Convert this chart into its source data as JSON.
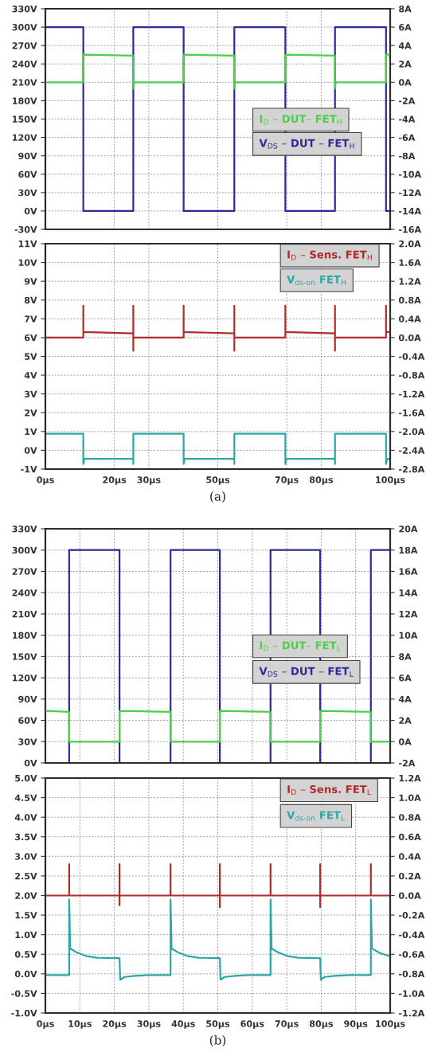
{
  "chart_data": [
    {
      "type": "line",
      "xlim": [
        0,
        100
      ],
      "xticks": [
        {
          "value": 20,
          "label": null
        },
        {
          "value": 30,
          "label": null
        },
        {
          "value": 50,
          "label": null
        },
        {
          "value": 70,
          "label": null
        },
        {
          "value": 80,
          "label": null
        }
      ],
      "ylim": [
        -30,
        330
      ],
      "yticks": [
        {
          "value": -30,
          "label": "-30V"
        },
        {
          "value": 0,
          "label": "0V"
        },
        {
          "value": 30,
          "label": "30V"
        },
        {
          "value": 60,
          "label": "60V"
        },
        {
          "value": 90,
          "label": "90V"
        },
        {
          "value": 120,
          "label": "120V"
        },
        {
          "value": 150,
          "label": "150V"
        },
        {
          "value": 180,
          "label": "180V"
        },
        {
          "value": 210,
          "label": "210V"
        },
        {
          "value": 240,
          "label": "240V"
        },
        {
          "value": 270,
          "label": "270V"
        },
        {
          "value": 300,
          "label": "300V"
        },
        {
          "value": 330,
          "label": "330V"
        }
      ],
      "y2lim": [
        -16,
        8
      ],
      "y2ticks": [
        {
          "value": -16,
          "label": "-16A"
        },
        {
          "value": -14,
          "label": "-14A"
        },
        {
          "value": -12,
          "label": "-12A"
        },
        {
          "value": -10,
          "label": "-10A"
        },
        {
          "value": -8,
          "label": "-8A"
        },
        {
          "value": -6,
          "label": "-6A"
        },
        {
          "value": -4,
          "label": "-4A"
        },
        {
          "value": -2,
          "label": "-2A"
        },
        {
          "value": 0,
          "label": "0A"
        },
        {
          "value": 2,
          "label": "2A"
        },
        {
          "value": 4,
          "label": "4A"
        },
        {
          "value": 6,
          "label": "6A"
        },
        {
          "value": 8,
          "label": "8A"
        }
      ],
      "grid": true,
      "legend": "right",
      "tick_labels": "y",
      "series": [
        {
          "name": "I$_{D}$ – DUT– FET$_{H}$",
          "color": "#4ccf4c",
          "axis": "y2",
          "x": [
            0,
            11,
            11,
            25.5,
            25.5,
            25.7,
            40.1,
            40.1,
            54.8,
            54.8,
            55.0,
            69.6,
            69.6,
            84.0,
            84.0,
            84.2,
            98.8,
            98.8,
            100
          ],
          "values": [
            0,
            0,
            3.0,
            2.9,
            -0.7,
            0,
            0,
            3.0,
            2.9,
            -0.7,
            0,
            0,
            3.0,
            2.9,
            -0.7,
            0,
            0,
            3.0,
            3.0
          ]
        },
        {
          "name": "V$_{DS}$ – DUT – FET$_{H}$",
          "color": "#2b2b9a",
          "axis": "y",
          "x": [
            0,
            11,
            11,
            25.5,
            25.5,
            40.1,
            40.1,
            54.8,
            54.8,
            69.6,
            69.6,
            84,
            84,
            98.8,
            98.8,
            100
          ],
          "values": [
            300,
            300,
            0,
            0,
            300,
            300,
            0,
            0,
            300,
            300,
            0,
            0,
            300,
            300,
            0,
            0
          ]
        }
      ]
    },
    {
      "type": "line",
      "xlim": [
        0,
        100
      ],
      "xticks": [
        {
          "value": 0,
          "label": "0µs"
        },
        {
          "value": 20,
          "label": "20µs"
        },
        {
          "value": 30,
          "label": "30µs"
        },
        {
          "value": 50,
          "label": "50µs"
        },
        {
          "value": 70,
          "label": "70µs"
        },
        {
          "value": 80,
          "label": "80µs"
        },
        {
          "value": 100,
          "label": "100µs"
        }
      ],
      "ylim": [
        -1,
        11
      ],
      "yticks": [
        {
          "value": -1,
          "label": "-1V"
        },
        {
          "value": 0,
          "label": "0V"
        },
        {
          "value": 1,
          "label": "1V"
        },
        {
          "value": 2,
          "label": "2V"
        },
        {
          "value": 3,
          "label": "3V"
        },
        {
          "value": 4,
          "label": "4V"
        },
        {
          "value": 5,
          "label": "5V"
        },
        {
          "value": 6,
          "label": "6V"
        },
        {
          "value": 7,
          "label": "7V"
        },
        {
          "value": 8,
          "label": "8V"
        },
        {
          "value": 9,
          "label": "9V"
        },
        {
          "value": 10,
          "label": "10V"
        },
        {
          "value": 11,
          "label": "11V"
        }
      ],
      "y2lim": [
        -2.8,
        2.0
      ],
      "y2ticks": [
        {
          "value": -2.8,
          "label": "-2.8A"
        },
        {
          "value": -2.4,
          "label": "-2.4A"
        },
        {
          "value": -2.0,
          "label": "-2.0A"
        },
        {
          "value": -1.6,
          "label": "-1.6A"
        },
        {
          "value": -1.2,
          "label": "-1.2A"
        },
        {
          "value": -0.8,
          "label": "-0.8A"
        },
        {
          "value": -0.4,
          "label": "-0.4A"
        },
        {
          "value": 0.0,
          "label": "0.0A"
        },
        {
          "value": 0.4,
          "label": "0.4A"
        },
        {
          "value": 0.8,
          "label": "0.8A"
        },
        {
          "value": 1.2,
          "label": "1.2A"
        },
        {
          "value": 1.6,
          "label": "1.6A"
        },
        {
          "value": 2.0,
          "label": "2.0A"
        }
      ],
      "grid": true,
      "legend": "top right",
      "annotations": [
        "(a)"
      ],
      "series": [
        {
          "name": "I$_{D}$ – Sens. FET$_{H}$",
          "color": "#b22a2a",
          "axis": "y2",
          "x": [
            0,
            11,
            11,
            11,
            25.5,
            25.5,
            25.5,
            25.5,
            40.1,
            40.1,
            40.1,
            54.8,
            54.8,
            54.8,
            54.8,
            69.6,
            69.6,
            69.6,
            84,
            84,
            84,
            84,
            98.8,
            98.8,
            98.8,
            100
          ],
          "values": [
            0,
            0,
            0.68,
            0.12,
            0.09,
            0.68,
            -0.28,
            0,
            0,
            0.68,
            0.12,
            0.09,
            0.68,
            -0.28,
            0,
            0,
            0.68,
            0.12,
            0.09,
            0.68,
            -0.28,
            0,
            0,
            0.68,
            0.12,
            0.12
          ]
        },
        {
          "name": "V$_{ds-on}$ FET$_{H}$",
          "color": "#2aa8a8",
          "axis": "y",
          "x": [
            0,
            11,
            11,
            11.3,
            25.5,
            25.5,
            25.5,
            40.1,
            40.1,
            40.4,
            54.8,
            54.8,
            54.8,
            69.6,
            69.6,
            69.9,
            84,
            84,
            84,
            98.8,
            98.8,
            99.1,
            100
          ],
          "values": [
            0.88,
            0.88,
            -0.73,
            -0.45,
            -0.45,
            -0.73,
            0.88,
            0.88,
            -0.73,
            -0.45,
            -0.45,
            -0.73,
            0.88,
            0.88,
            -0.73,
            -0.45,
            -0.45,
            -0.73,
            0.88,
            0.88,
            -0.73,
            -0.45,
            -0.45
          ]
        }
      ]
    },
    {
      "type": "line",
      "xlim": [
        0,
        100
      ],
      "xticks": [
        {
          "value": 0,
          "label": null
        },
        {
          "value": 10,
          "label": null
        },
        {
          "value": 20,
          "label": null
        },
        {
          "value": 30,
          "label": null
        },
        {
          "value": 40,
          "label": null
        },
        {
          "value": 50,
          "label": null
        },
        {
          "value": 60,
          "label": null
        },
        {
          "value": 70,
          "label": null
        },
        {
          "value": 80,
          "label": null
        },
        {
          "value": 90,
          "label": null
        },
        {
          "value": 100,
          "label": null
        }
      ],
      "ylim": [
        0,
        330
      ],
      "yticks": [
        {
          "value": 0,
          "label": "0V"
        },
        {
          "value": 30,
          "label": "30V"
        },
        {
          "value": 60,
          "label": "60V"
        },
        {
          "value": 90,
          "label": "90V"
        },
        {
          "value": 120,
          "label": "120V"
        },
        {
          "value": 150,
          "label": "150V"
        },
        {
          "value": 180,
          "label": "180V"
        },
        {
          "value": 210,
          "label": "210V"
        },
        {
          "value": 240,
          "label": "240V"
        },
        {
          "value": 270,
          "label": "270V"
        },
        {
          "value": 300,
          "label": "300V"
        },
        {
          "value": 330,
          "label": "330V"
        }
      ],
      "y2lim": [
        -2,
        20
      ],
      "y2ticks": [
        {
          "value": -2,
          "label": "-2A"
        },
        {
          "value": 0,
          "label": "0A"
        },
        {
          "value": 2,
          "label": "2A"
        },
        {
          "value": 4,
          "label": "4A"
        },
        {
          "value": 6,
          "label": "6A"
        },
        {
          "value": 8,
          "label": "8A"
        },
        {
          "value": 10,
          "label": "10A"
        },
        {
          "value": 12,
          "label": "12A"
        },
        {
          "value": 14,
          "label": "14A"
        },
        {
          "value": 16,
          "label": "16A"
        },
        {
          "value": 18,
          "label": "18A"
        },
        {
          "value": 20,
          "label": "20A"
        }
      ],
      "grid": true,
      "legend": "right",
      "tick_labels": "y",
      "series": [
        {
          "name": "I$_{D}$ – DUT– FET$_{L}$",
          "color": "#4ccf4c",
          "axis": "y2",
          "x": [
            0,
            6.9,
            6.9,
            21.5,
            21.5,
            36.3,
            36.3,
            50.6,
            50.6,
            65.3,
            65.3,
            79.7,
            79.7,
            94.4,
            94.4,
            100
          ],
          "values": [
            2.9,
            2.8,
            0,
            0,
            2.9,
            2.8,
            0,
            0,
            2.9,
            2.8,
            0,
            0,
            2.9,
            2.8,
            0,
            0
          ]
        },
        {
          "name": "V$_{DS}$ – DUT – FET$_{L}$",
          "color": "#2b2b9a",
          "axis": "y",
          "x": [
            0,
            6.9,
            6.9,
            21.5,
            21.5,
            36.3,
            36.3,
            50.6,
            50.6,
            65.3,
            65.3,
            79.7,
            79.7,
            94.4,
            94.4,
            100
          ],
          "values": [
            0,
            0,
            300,
            300,
            0,
            0,
            300,
            300,
            0,
            0,
            300,
            300,
            0,
            0,
            300,
            300
          ]
        }
      ]
    },
    {
      "type": "line",
      "xlim": [
        0,
        100
      ],
      "xticks": [
        {
          "value": 0,
          "label": "0µs"
        },
        {
          "value": 10,
          "label": "10µs"
        },
        {
          "value": 20,
          "label": "20µs"
        },
        {
          "value": 30,
          "label": "30µs"
        },
        {
          "value": 40,
          "label": "40µs"
        },
        {
          "value": 50,
          "label": "50µs"
        },
        {
          "value": 60,
          "label": "60µs"
        },
        {
          "value": 70,
          "label": "70µs"
        },
        {
          "value": 80,
          "label": "80µs"
        },
        {
          "value": 90,
          "label": "90µs"
        },
        {
          "value": 100,
          "label": "100µs"
        }
      ],
      "ylim": [
        -1.0,
        5.0
      ],
      "yticks": [
        {
          "value": -1.0,
          "label": "-1.0V"
        },
        {
          "value": -0.5,
          "label": "-0.5V"
        },
        {
          "value": 0.0,
          "label": "0.0V"
        },
        {
          "value": 0.5,
          "label": "0.5V"
        },
        {
          "value": 1.0,
          "label": "1.0V"
        },
        {
          "value": 1.5,
          "label": "1.5V"
        },
        {
          "value": 2.0,
          "label": "2.0V"
        },
        {
          "value": 2.5,
          "label": "2.5V"
        },
        {
          "value": 3.0,
          "label": "3.0V"
        },
        {
          "value": 3.5,
          "label": "3.5V"
        },
        {
          "value": 4.0,
          "label": "4.0V"
        },
        {
          "value": 4.5,
          "label": "4.5V"
        },
        {
          "value": 5.0,
          "label": "5.0V"
        }
      ],
      "y2lim": [
        -1.2,
        1.2
      ],
      "y2ticks": [
        {
          "value": -1.2,
          "label": "-1.2A"
        },
        {
          "value": -1.0,
          "label": "-1.0A"
        },
        {
          "value": -0.8,
          "label": "-0.8A"
        },
        {
          "value": -0.6,
          "label": "-0.6A"
        },
        {
          "value": -0.4,
          "label": "-0.4A"
        },
        {
          "value": -0.2,
          "label": "-0.2A"
        },
        {
          "value": 0.0,
          "label": "0.0A"
        },
        {
          "value": 0.2,
          "label": "0.2A"
        },
        {
          "value": 0.4,
          "label": "0.4A"
        },
        {
          "value": 0.6,
          "label": "0.6A"
        },
        {
          "value": 0.8,
          "label": "0.8A"
        },
        {
          "value": 1.0,
          "label": "1.0A"
        },
        {
          "value": 1.2,
          "label": "1.2A"
        }
      ],
      "grid": true,
      "legend": "top right",
      "annotations": [
        "(b)"
      ],
      "series": [
        {
          "name": "I$_{D}$ – Sens. FET$_{L}$",
          "color": "#b22a2a",
          "axis": "y2",
          "x": [
            0,
            6.9,
            6.9,
            6.9,
            21.5,
            21.5,
            21.5,
            21.5,
            36.3,
            36.3,
            36.3,
            50.6,
            50.6,
            50.6,
            50.6,
            65.3,
            65.3,
            65.3,
            79.7,
            79.7,
            79.7,
            79.7,
            94.4,
            94.4,
            94.4,
            100
          ],
          "values": [
            0,
            0,
            0.32,
            0,
            0,
            0.32,
            -0.1,
            0,
            0,
            0.32,
            0,
            0,
            0.32,
            -0.12,
            0,
            0,
            0.32,
            0,
            0,
            0.32,
            -0.12,
            0,
            0,
            0.32,
            0,
            0
          ]
        },
        {
          "name": "V$_{ds-on}$ FET$_{L}$",
          "color": "#2aa8a8",
          "axis": "y",
          "x": [
            0,
            6.9,
            6.9,
            7.2,
            9,
            12,
            15,
            21.5,
            21.7,
            23,
            26,
            30,
            36.3,
            36.3,
            36.6,
            38.4,
            41.4,
            44.4,
            50.6,
            50.8,
            52,
            55,
            59,
            65.3,
            65.3,
            65.6,
            67.4,
            70.4,
            73.4,
            79.7,
            79.9,
            81,
            84,
            88,
            94.4,
            94.4,
            94.7,
            97,
            100
          ],
          "values": [
            -0.03,
            -0.03,
            1.9,
            0.65,
            0.55,
            0.45,
            0.41,
            0.4,
            -0.15,
            -0.08,
            -0.05,
            -0.03,
            -0.03,
            1.9,
            0.65,
            0.55,
            0.45,
            0.41,
            0.4,
            -0.15,
            -0.08,
            -0.05,
            -0.03,
            -0.03,
            1.9,
            0.65,
            0.55,
            0.45,
            0.41,
            0.4,
            -0.15,
            -0.08,
            -0.05,
            -0.03,
            -0.03,
            1.9,
            0.65,
            0.53,
            0.45
          ]
        }
      ]
    }
  ]
}
